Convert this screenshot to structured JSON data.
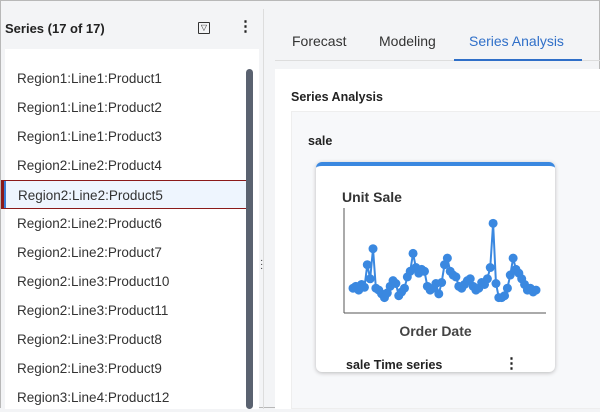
{
  "left_panel": {
    "title": "Series (17 of 17)",
    "filter_icon": "filter-icon",
    "more_icon": "kebab-icon",
    "items": [
      "Region1:Line1:Product1",
      "Region1:Line1:Product2",
      "Region1:Line1:Product3",
      "Region2:Line2:Product4",
      "Region2:Line2:Product5",
      "Region2:Line2:Product6",
      "Region2:Line2:Product7",
      "Region2:Line3:Product10",
      "Region2:Line3:Product11",
      "Region2:Line3:Product8",
      "Region2:Line3:Product9",
      "Region3:Line4:Product12"
    ],
    "selected_index": 4
  },
  "tabs": [
    {
      "label": "Forecast"
    },
    {
      "label": "Modeling"
    },
    {
      "label": "Series Analysis",
      "active": true
    }
  ],
  "main": {
    "title": "Series Analysis",
    "section": "sale",
    "card": {
      "footer": "sale Time series",
      "accent": "#3a88e0"
    }
  },
  "chart_data": {
    "type": "line",
    "title": "",
    "ylabel": "Unit Sale",
    "xlabel": "Order Date",
    "grid": false,
    "color": "#3a88e0",
    "values": [
      20,
      22,
      18,
      24,
      21,
      45,
      30,
      62,
      20,
      18,
      14,
      10,
      15,
      22,
      28,
      25,
      12,
      16,
      20,
      32,
      38,
      57,
      42,
      36,
      40,
      38,
      22,
      18,
      20,
      25,
      14,
      26,
      45,
      52,
      38,
      34,
      32,
      22,
      20,
      24,
      28,
      30,
      22,
      18,
      20,
      26,
      24,
      30,
      42,
      89,
      25,
      10,
      10,
      12,
      20,
      34,
      52,
      40,
      36,
      30,
      24,
      18,
      20,
      16,
      18
    ]
  }
}
